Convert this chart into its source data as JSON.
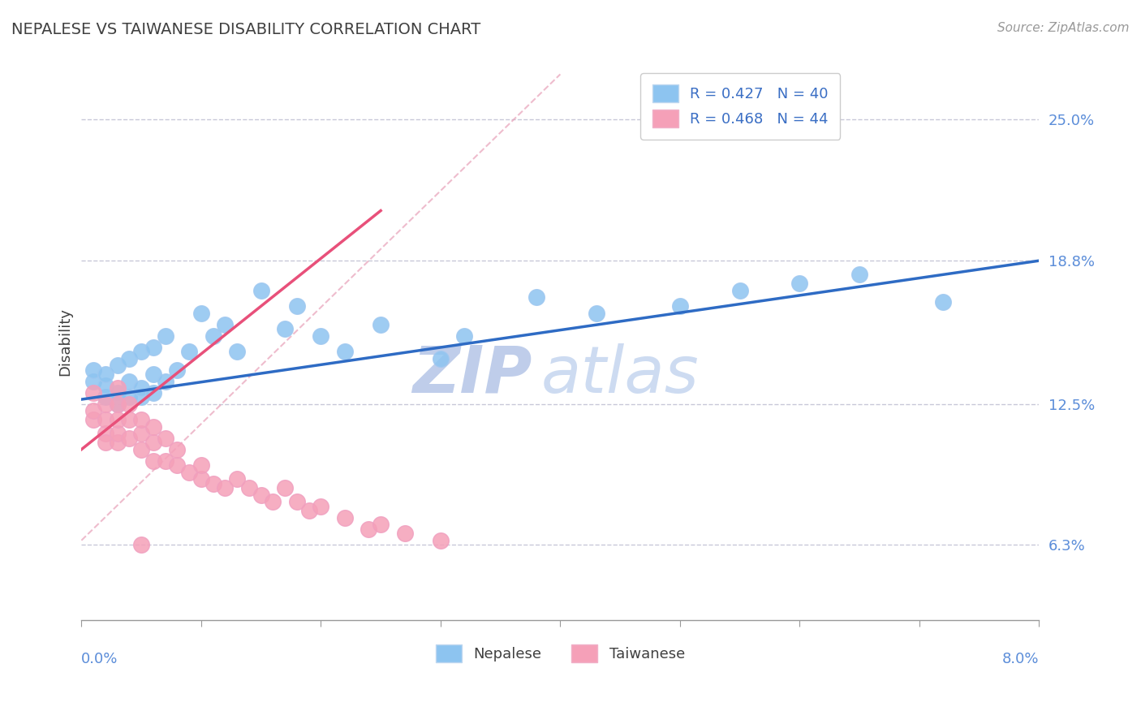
{
  "title": "NEPALESE VS TAIWANESE DISABILITY CORRELATION CHART",
  "source": "Source: ZipAtlas.com",
  "ylabel": "Disability",
  "ytick_labels": [
    "6.3%",
    "12.5%",
    "18.8%",
    "25.0%"
  ],
  "ytick_values": [
    0.063,
    0.125,
    0.188,
    0.25
  ],
  "xlim": [
    0.0,
    0.08
  ],
  "ylim": [
    0.03,
    0.275
  ],
  "nepalese_R": 0.427,
  "nepalese_N": 40,
  "taiwanese_R": 0.468,
  "taiwanese_N": 44,
  "nepalese_color": "#8DC4F0",
  "taiwanese_color": "#F5A0B8",
  "nepalese_line_color": "#2E6BC4",
  "taiwanese_line_color": "#E8507A",
  "legend_text_color": "#3A6EC4",
  "axis_label_color": "#5B8DD9",
  "title_color": "#404040",
  "grid_color": "#C8C8D8",
  "watermark_color": "#C8D8F0",
  "nepalese_x": [
    0.001,
    0.001,
    0.002,
    0.002,
    0.002,
    0.003,
    0.003,
    0.003,
    0.004,
    0.004,
    0.004,
    0.005,
    0.005,
    0.005,
    0.006,
    0.006,
    0.006,
    0.007,
    0.007,
    0.008,
    0.009,
    0.01,
    0.011,
    0.012,
    0.013,
    0.015,
    0.017,
    0.018,
    0.02,
    0.022,
    0.025,
    0.03,
    0.032,
    0.038,
    0.043,
    0.05,
    0.055,
    0.06,
    0.065,
    0.072
  ],
  "nepalese_y": [
    0.135,
    0.14,
    0.128,
    0.133,
    0.138,
    0.125,
    0.13,
    0.142,
    0.128,
    0.135,
    0.145,
    0.128,
    0.132,
    0.148,
    0.13,
    0.138,
    0.15,
    0.135,
    0.155,
    0.14,
    0.148,
    0.165,
    0.155,
    0.16,
    0.148,
    0.175,
    0.158,
    0.168,
    0.155,
    0.148,
    0.16,
    0.145,
    0.155,
    0.172,
    0.165,
    0.168,
    0.175,
    0.178,
    0.182,
    0.17
  ],
  "taiwanese_x": [
    0.001,
    0.001,
    0.001,
    0.002,
    0.002,
    0.002,
    0.002,
    0.003,
    0.003,
    0.003,
    0.003,
    0.003,
    0.004,
    0.004,
    0.004,
    0.005,
    0.005,
    0.005,
    0.006,
    0.006,
    0.006,
    0.007,
    0.007,
    0.008,
    0.008,
    0.009,
    0.01,
    0.01,
    0.011,
    0.012,
    0.013,
    0.014,
    0.015,
    0.016,
    0.017,
    0.018,
    0.019,
    0.02,
    0.022,
    0.024,
    0.025,
    0.027,
    0.03,
    0.005
  ],
  "taiwanese_y": [
    0.118,
    0.122,
    0.13,
    0.112,
    0.118,
    0.108,
    0.125,
    0.108,
    0.112,
    0.118,
    0.125,
    0.132,
    0.11,
    0.118,
    0.125,
    0.105,
    0.112,
    0.118,
    0.1,
    0.108,
    0.115,
    0.1,
    0.11,
    0.098,
    0.105,
    0.095,
    0.092,
    0.098,
    0.09,
    0.088,
    0.092,
    0.088,
    0.085,
    0.082,
    0.088,
    0.082,
    0.078,
    0.08,
    0.075,
    0.07,
    0.072,
    0.068,
    0.065,
    0.063
  ],
  "nep_line_x": [
    0.0,
    0.08
  ],
  "nep_line_y": [
    0.127,
    0.188
  ],
  "tai_line_x": [
    0.0,
    0.025
  ],
  "tai_line_y": [
    0.105,
    0.21
  ],
  "diag_line_x": [
    0.0,
    0.04
  ],
  "diag_line_y": [
    0.065,
    0.27
  ]
}
